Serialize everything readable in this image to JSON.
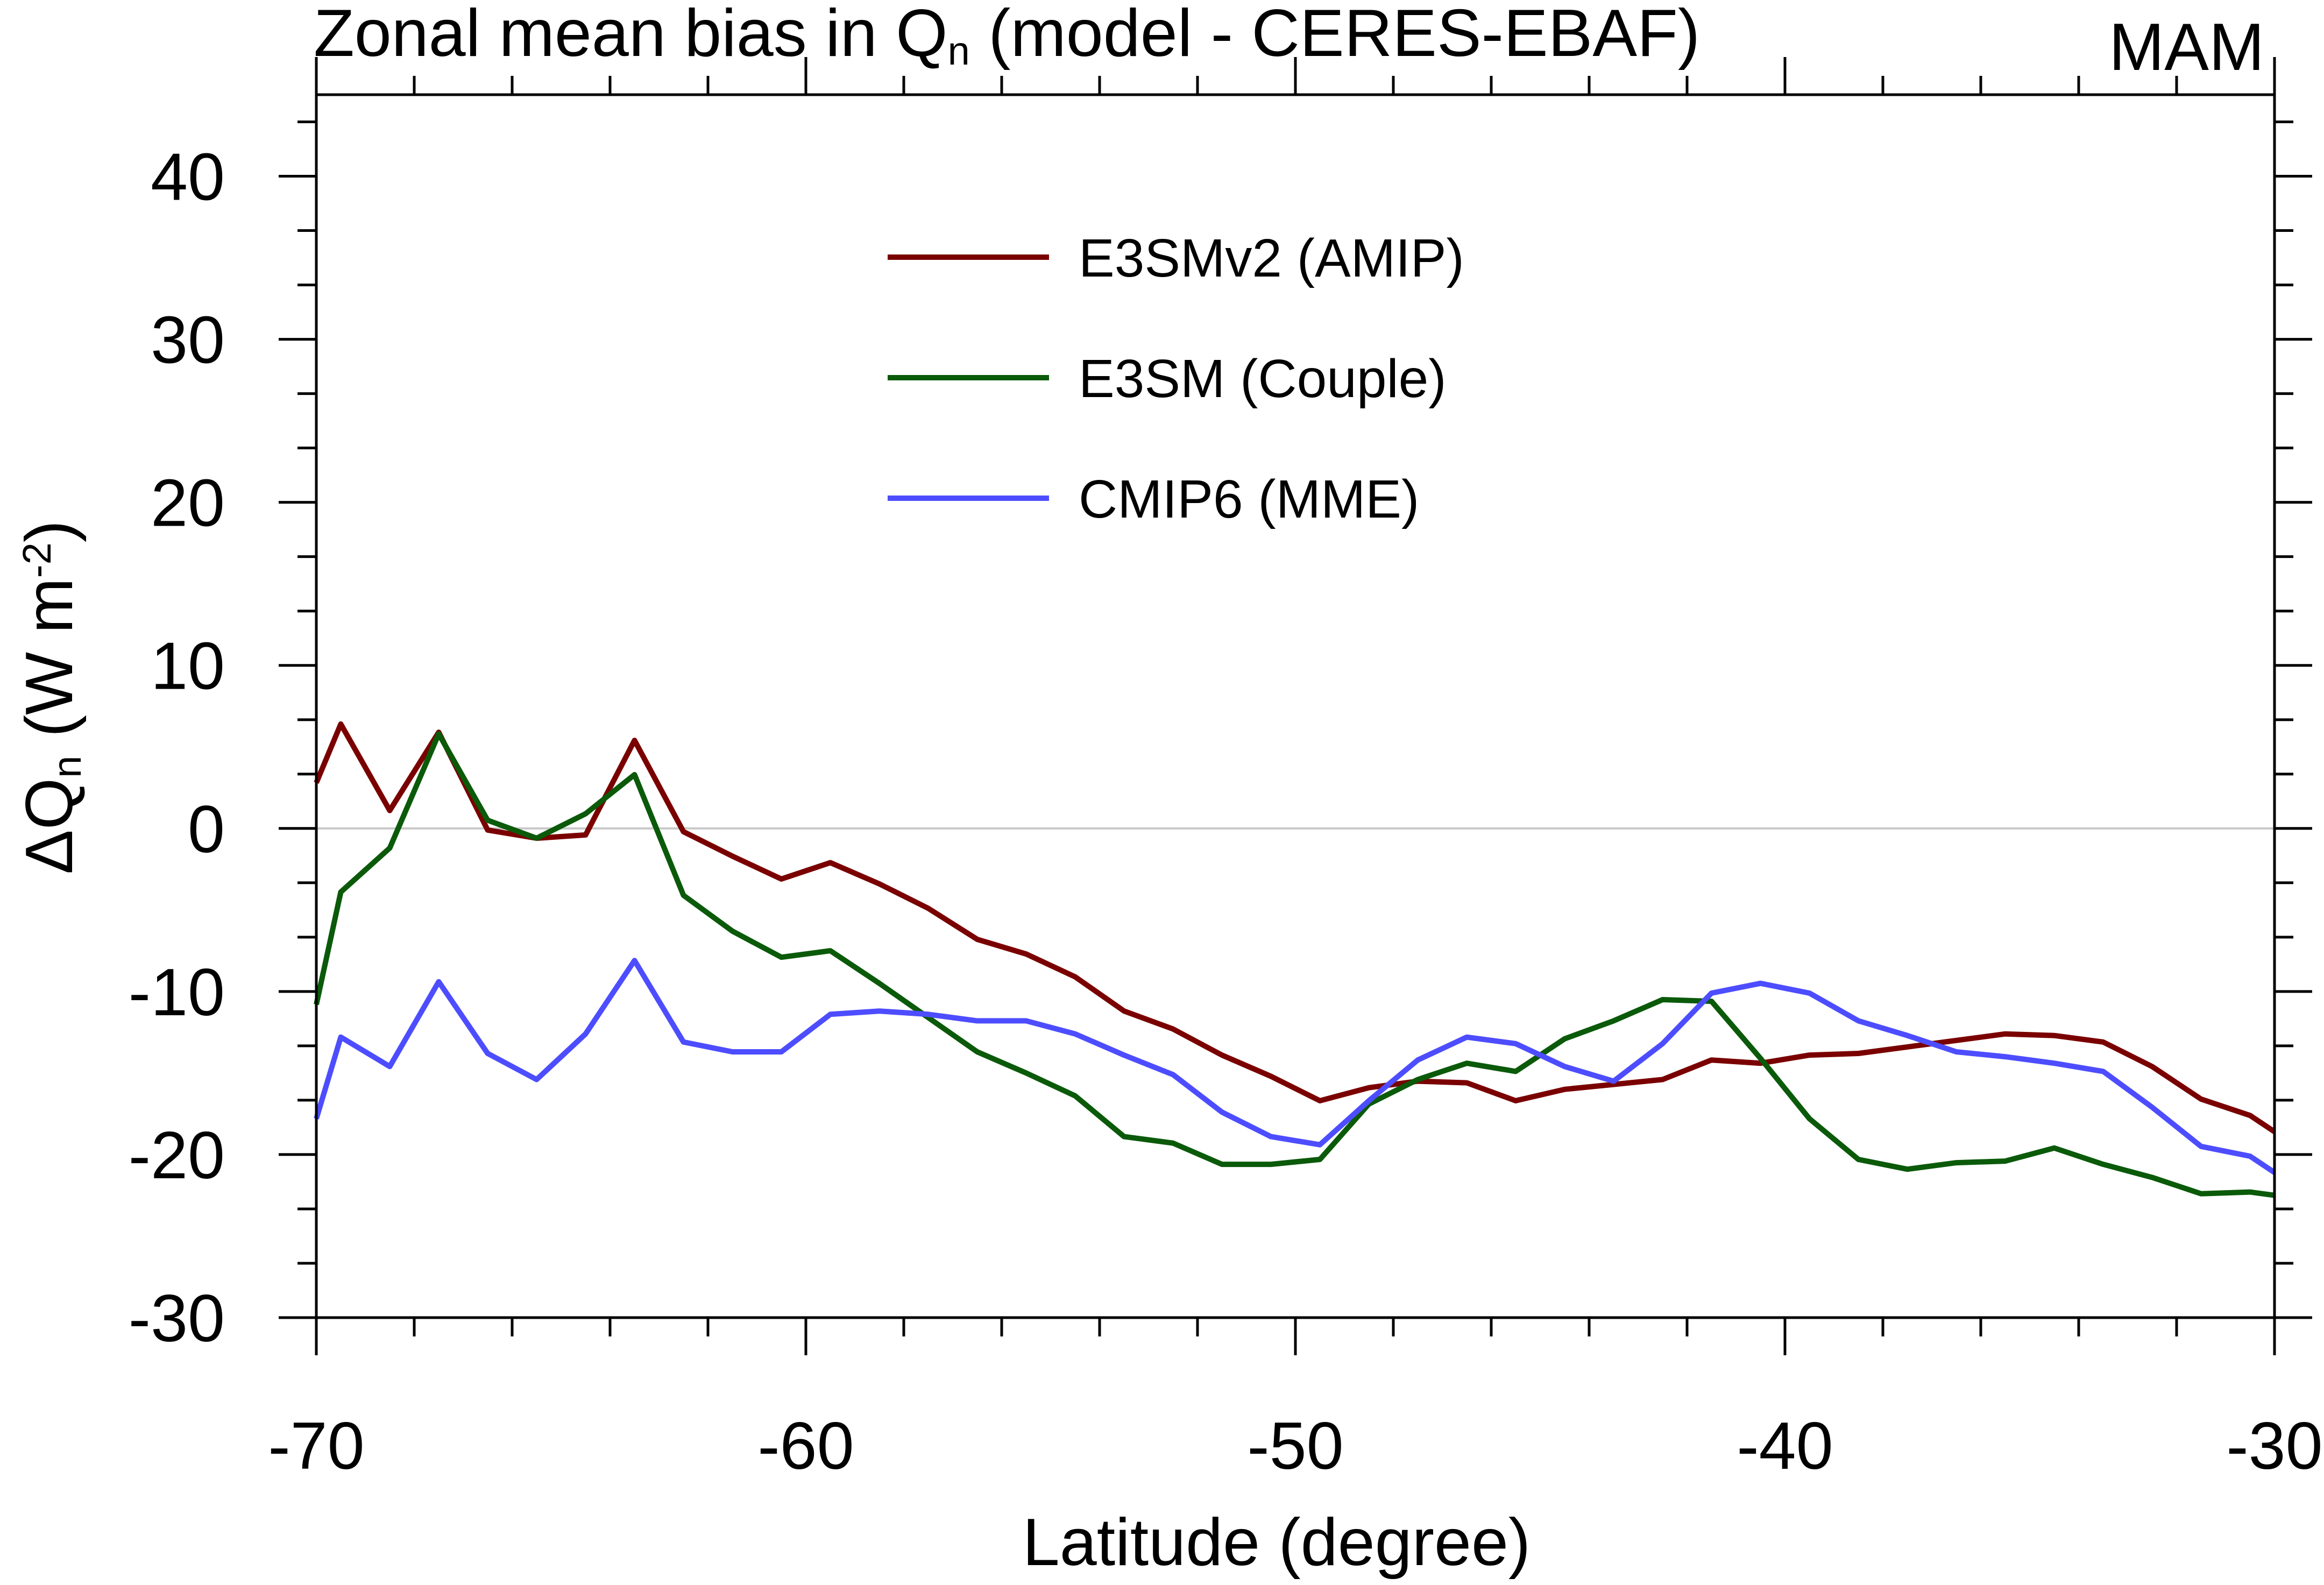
{
  "chart_data": {
    "type": "line",
    "title_main": "Zonal mean bias in Q",
    "title_sub": "n",
    "title_rest": " (model - CERES-EBAF)",
    "season": "MAM",
    "xlabel": "Latitude (degree)",
    "ylabel_prefix": "ΔQ",
    "ylabel_sub": "n",
    "ylabel_mid": " (W m",
    "ylabel_sup": "-2",
    "ylabel_end": ")",
    "xlim": [
      -70,
      -30
    ],
    "ylim": [
      -30,
      45
    ],
    "xticks": [
      -70,
      -60,
      -50,
      -40,
      -30
    ],
    "xtick_labels": [
      "-70",
      "-60",
      "-50",
      "-40",
      "-30"
    ],
    "yticks": [
      -30,
      -20,
      -10,
      0,
      10,
      20,
      30,
      40
    ],
    "ytick_labels": [
      "-30",
      "-20",
      "-10",
      "0",
      "10",
      "20",
      "30",
      "40"
    ],
    "x": [
      -70,
      -69.5,
      -68.5,
      -67.5,
      -66.5,
      -65.5,
      -64.5,
      -63.5,
      -62.5,
      -61.5,
      -60.5,
      -59.5,
      -58.5,
      -57.5,
      -56.5,
      -55.5,
      -54.5,
      -53.5,
      -52.5,
      -51.5,
      -50.5,
      -49.5,
      -48.5,
      -47.5,
      -46.5,
      -45.5,
      -44.5,
      -43.5,
      -42.5,
      -41.5,
      -40.5,
      -39.5,
      -38.5,
      -37.5,
      -36.5,
      -35.5,
      -34.5,
      -33.5,
      -32.5,
      -31.5,
      -30.5,
      -30
    ],
    "series": [
      {
        "name": "E3SMv2 (AMIP)",
        "color": "#7a0000",
        "values": [
          2.8,
          6.4,
          1.1,
          5.9,
          -0.1,
          -0.6,
          -0.4,
          5.4,
          -0.2,
          -1.7,
          -3.1,
          -2.1,
          -3.4,
          -4.9,
          -6.8,
          -7.7,
          -9.1,
          -11.2,
          -12.3,
          -13.9,
          -15.2,
          -16.7,
          -15.9,
          -15.5,
          -15.6,
          -16.7,
          -16.0,
          -15.7,
          -15.4,
          -14.2,
          -14.4,
          -13.9,
          -13.8,
          -13.4,
          -13.0,
          -12.6,
          -12.7,
          -13.1,
          -14.6,
          -16.6,
          -17.6,
          -18.6
        ]
      },
      {
        "name": "E3SM (Couple)",
        "color": "#0a5a0a",
        "values": [
          -10.8,
          -3.9,
          -1.2,
          5.8,
          0.5,
          -0.6,
          0.9,
          3.3,
          -4.1,
          -6.3,
          -7.9,
          -7.5,
          -9.5,
          -11.6,
          -13.7,
          -15.0,
          -16.4,
          -18.9,
          -19.3,
          -20.6,
          -20.6,
          -20.3,
          -16.9,
          -15.4,
          -14.4,
          -14.9,
          -12.9,
          -11.8,
          -10.5,
          -10.6,
          -14.1,
          -17.8,
          -20.3,
          -20.9,
          -20.5,
          -20.4,
          -19.6,
          -20.6,
          -21.4,
          -22.4,
          -22.3,
          -22.5
        ]
      },
      {
        "name": "CMIP6 (MME)",
        "color": "#4d4dff",
        "values": [
          -17.8,
          -12.8,
          -14.6,
          -9.4,
          -13.8,
          -15.4,
          -12.6,
          -8.1,
          -13.1,
          -13.7,
          -13.7,
          -11.4,
          -11.2,
          -11.4,
          -11.8,
          -11.8,
          -12.6,
          -13.9,
          -15.1,
          -17.4,
          -18.9,
          -19.4,
          -16.7,
          -14.2,
          -12.8,
          -13.2,
          -14.6,
          -15.5,
          -13.2,
          -10.1,
          -9.5,
          -10.1,
          -11.8,
          -12.7,
          -13.7,
          -14.0,
          -14.4,
          -14.9,
          -17.1,
          -19.5,
          -20.1,
          -21.1
        ]
      }
    ],
    "reference_line": 0,
    "legend_position": "upper-center"
  }
}
